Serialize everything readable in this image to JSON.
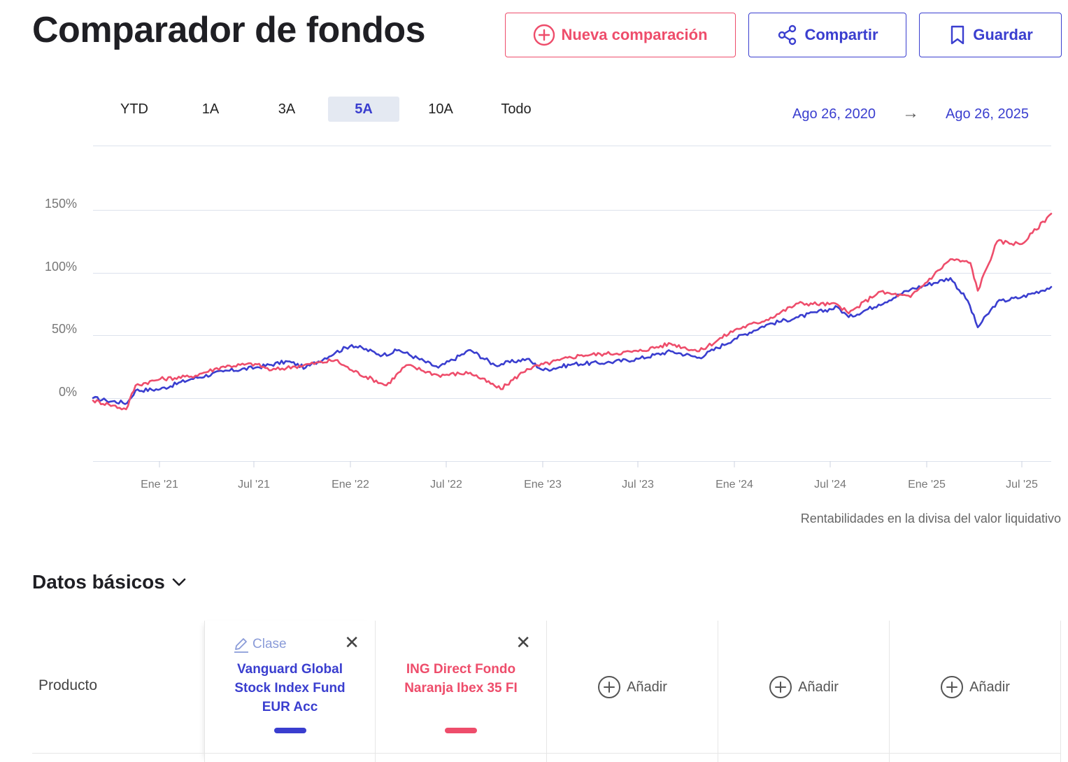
{
  "header": {
    "title": "Comparador de fondos",
    "new_label": "Nueva comparación",
    "share_label": "Compartir",
    "save_label": "Guardar"
  },
  "range_tabs": [
    {
      "label": "YTD",
      "active": false
    },
    {
      "label": "1A",
      "active": false
    },
    {
      "label": "3A",
      "active": false
    },
    {
      "label": "5A",
      "active": true
    },
    {
      "label": "10A",
      "active": false
    },
    {
      "label": "Todo",
      "active": false
    }
  ],
  "date_range": {
    "start": "Ago 26, 2020",
    "arrow": "→",
    "end": "Ago 26, 2025"
  },
  "chart_note": "Rentabilidades en la divisa del valor liquidativo",
  "colors": {
    "series_blue": "#3a3ecf",
    "series_pink": "#ee4d6b",
    "accent": "#3a3ecf"
  },
  "chart_data": {
    "type": "line",
    "x_ticks": [
      "Ene '21",
      "Jul '21",
      "Ene '22",
      "Jul '22",
      "Ene '23",
      "Jul '23",
      "Ene '24",
      "Jul '24",
      "Ene '25",
      "Jul '25"
    ],
    "y_ticks": [
      "150%",
      "100%",
      "50%",
      "0%"
    ],
    "ylim": [
      -50,
      200
    ],
    "x_range": [
      "2020-08-26",
      "2025-08-26"
    ],
    "grid": true,
    "series": [
      {
        "name": "Vanguard Global Stock Index Fund EUR Acc",
        "color": "#3a3ecf",
        "points": [
          [
            "2020-08-26",
            0
          ],
          [
            "2020-09-20",
            -2
          ],
          [
            "2020-10-30",
            -4
          ],
          [
            "2020-11-15",
            6
          ],
          [
            "2021-01-01",
            7
          ],
          [
            "2021-03-01",
            15
          ],
          [
            "2021-05-01",
            21
          ],
          [
            "2021-07-01",
            24
          ],
          [
            "2021-09-01",
            29
          ],
          [
            "2021-10-05",
            24
          ],
          [
            "2021-12-01",
            36
          ],
          [
            "2022-01-01",
            42
          ],
          [
            "2022-03-01",
            34
          ],
          [
            "2022-04-01",
            38
          ],
          [
            "2022-06-15",
            24
          ],
          [
            "2022-08-15",
            38
          ],
          [
            "2022-10-01",
            26
          ],
          [
            "2022-12-01",
            31
          ],
          [
            "2023-01-01",
            22
          ],
          [
            "2023-03-01",
            27
          ],
          [
            "2023-05-01",
            28
          ],
          [
            "2023-07-01",
            31
          ],
          [
            "2023-09-01",
            37
          ],
          [
            "2023-10-25",
            32
          ],
          [
            "2024-01-01",
            47
          ],
          [
            "2024-03-01",
            58
          ],
          [
            "2024-05-01",
            64
          ],
          [
            "2024-07-15",
            72
          ],
          [
            "2024-08-05",
            64
          ],
          [
            "2024-10-01",
            74
          ],
          [
            "2024-12-01",
            86
          ],
          [
            "2025-02-15",
            95
          ],
          [
            "2025-03-20",
            77
          ],
          [
            "2025-04-08",
            56
          ],
          [
            "2025-05-15",
            76
          ],
          [
            "2025-07-01",
            80
          ],
          [
            "2025-08-26",
            88
          ]
        ]
      },
      {
        "name": "ING Direct Fondo Naranja Ibex 35 FI",
        "color": "#ee4d6b",
        "points": [
          [
            "2020-08-26",
            -2
          ],
          [
            "2020-09-25",
            -5
          ],
          [
            "2020-10-28",
            -9
          ],
          [
            "2020-11-15",
            10
          ],
          [
            "2021-01-01",
            15
          ],
          [
            "2021-03-01",
            17
          ],
          [
            "2021-05-01",
            25
          ],
          [
            "2021-07-01",
            27
          ],
          [
            "2021-08-01",
            22
          ],
          [
            "2021-09-15",
            25
          ],
          [
            "2021-12-01",
            30
          ],
          [
            "2022-01-01",
            22
          ],
          [
            "2022-03-08",
            10
          ],
          [
            "2022-04-15",
            26
          ],
          [
            "2022-06-15",
            18
          ],
          [
            "2022-08-15",
            20
          ],
          [
            "2022-10-12",
            7
          ],
          [
            "2022-12-01",
            23
          ],
          [
            "2023-02-01",
            30
          ],
          [
            "2023-03-15",
            34
          ],
          [
            "2023-05-01",
            35
          ],
          [
            "2023-07-01",
            37
          ],
          [
            "2023-09-01",
            43
          ],
          [
            "2023-10-25",
            37
          ],
          [
            "2024-01-01",
            54
          ],
          [
            "2024-03-01",
            62
          ],
          [
            "2024-05-01",
            75
          ],
          [
            "2024-07-15",
            74
          ],
          [
            "2024-08-05",
            67
          ],
          [
            "2024-10-01",
            84
          ],
          [
            "2024-12-01",
            80
          ],
          [
            "2025-02-15",
            110
          ],
          [
            "2025-03-25",
            107
          ],
          [
            "2025-04-08",
            85
          ],
          [
            "2025-05-15",
            124
          ],
          [
            "2025-07-01",
            122
          ],
          [
            "2025-08-26",
            146
          ]
        ]
      }
    ]
  },
  "basics": {
    "title": "Datos básicos",
    "row_label": "Producto",
    "clase_label": "Clase",
    "close_glyph": "✕",
    "products": [
      {
        "name": "Vanguard Global Stock Index Fund EUR Acc",
        "color": "#3a3ecf"
      },
      {
        "name": "ING Direct Fondo Naranja Ibex 35 FI",
        "color": "#ee4d6b"
      }
    ],
    "add_label": "Añadir"
  }
}
